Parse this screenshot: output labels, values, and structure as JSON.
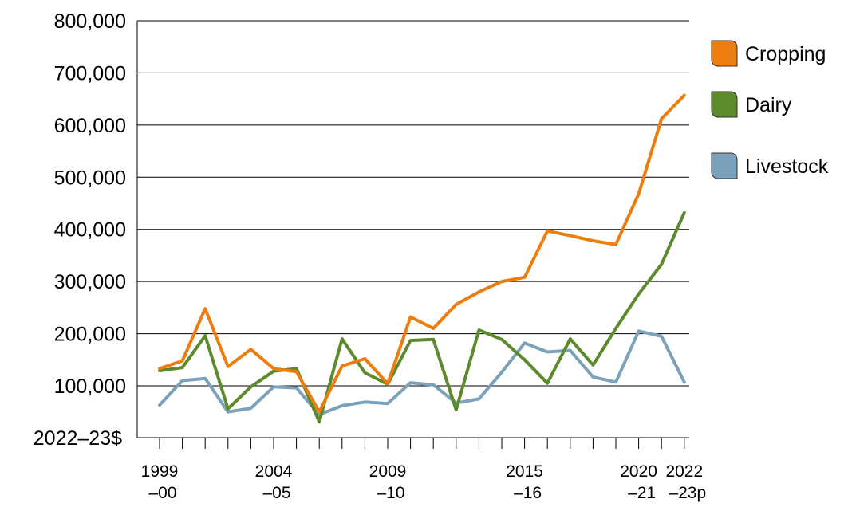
{
  "chart_data": {
    "type": "line",
    "title": "",
    "xlabel": "",
    "ylabel": "2022–23$",
    "ylim": [
      0,
      800000
    ],
    "yticks": [
      "100,000",
      "200,000",
      "300,000",
      "400,000",
      "500,000",
      "600,000",
      "700,000",
      "800,000"
    ],
    "ytick_values": [
      100000,
      200000,
      300000,
      400000,
      500000,
      600000,
      700000,
      800000
    ],
    "grid": true,
    "legend_position": "right",
    "categories": [
      "1999–00",
      "2000–01",
      "2001–02",
      "2002–03",
      "2003–04",
      "2004–05",
      "2005–06",
      "2006–07",
      "2007–08",
      "2008–09",
      "2009–10",
      "2010–11",
      "2011–12",
      "2012–13",
      "2013–14",
      "2014–15",
      "2015–16",
      "2016–17",
      "2017–18",
      "2018–19",
      "2019–20",
      "2020–21",
      "2021–22",
      "2022–23p"
    ],
    "xtick_labels": [
      {
        "index": 0,
        "line1": "1999",
        "line2": "–00"
      },
      {
        "index": 5,
        "line1": "2004",
        "line2": "–05"
      },
      {
        "index": 10,
        "line1": "2009",
        "line2": "–10"
      },
      {
        "index": 16,
        "line1": "2015",
        "line2": "–16"
      },
      {
        "index": 21,
        "line1": "2020",
        "line2": "–21"
      },
      {
        "index": 23,
        "line1": "2022",
        "line2": "–23p"
      }
    ],
    "series": [
      {
        "name": "Cropping",
        "color": "#ED7D0F",
        "values": [
          133000,
          148000,
          248000,
          137000,
          170000,
          133000,
          127000,
          50000,
          138000,
          152000,
          104000,
          232000,
          210000,
          256000,
          280000,
          300000,
          308000,
          397000,
          388000,
          378000,
          371000,
          468000,
          612000,
          657000
        ]
      },
      {
        "name": "Dairy",
        "color": "#5E8A2E",
        "values": [
          129000,
          135000,
          196000,
          56000,
          98000,
          128000,
          133000,
          31000,
          190000,
          125000,
          103000,
          187000,
          189000,
          54000,
          207000,
          189000,
          150000,
          105000,
          190000,
          140000,
          210000,
          276000,
          333000,
          432000
        ]
      },
      {
        "name": "Livestock",
        "color": "#7BA2BA",
        "values": [
          63000,
          110000,
          114000,
          50000,
          57000,
          98000,
          96000,
          45000,
          62000,
          69000,
          66000,
          106000,
          102000,
          67000,
          75000,
          126000,
          182000,
          165000,
          168000,
          117000,
          107000,
          205000,
          195000,
          107000
        ]
      }
    ]
  }
}
